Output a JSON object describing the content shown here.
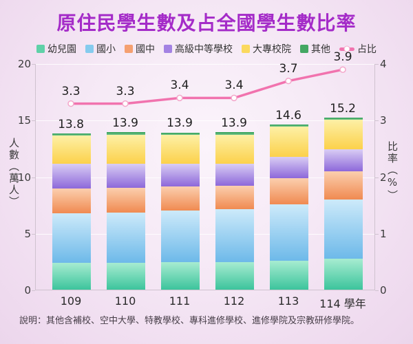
{
  "title": "原住民學生數及占全國學生數比率",
  "footnote": "說明：其他含補校、空中大學、特教學校、專科進修學校、進修學院及宗教研修學院。",
  "colors": {
    "title": "#a42bc8",
    "line": "#f173ae",
    "marker_fill": "#ffffff",
    "marker_stroke": "#f4a6ca",
    "axis_line": "#cfc2cf",
    "gridline": "rgba(255,255,255,0.85)"
  },
  "chart_data": {
    "type": "bar",
    "subtype": "stacked-columns-with-line-overlay",
    "title": "原住民學生數及占全國學生數比率",
    "categories": [
      "109",
      "110",
      "111",
      "112",
      "113",
      "114"
    ],
    "x_axis_suffix": "學年",
    "series": [
      {
        "name": "幼兒園",
        "values": [
          2.4,
          2.4,
          2.45,
          2.45,
          2.55,
          2.75
        ],
        "color_top": "#a7ecd1",
        "color_bottom": "#3cc49c",
        "legend_color": "#5fd1a8"
      },
      {
        "name": "國小",
        "values": [
          4.35,
          4.4,
          4.55,
          4.65,
          5.0,
          5.2
        ],
        "color_top": "#cdeafa",
        "color_bottom": "#6db9e9",
        "legend_color": "#85cbee"
      },
      {
        "name": "國中",
        "values": [
          2.2,
          2.2,
          2.1,
          2.1,
          2.3,
          2.5
        ],
        "color_top": "#fbcfae",
        "color_bottom": "#f08a51",
        "legend_color": "#f5a071"
      },
      {
        "name": "高級中等學校",
        "values": [
          2.15,
          2.1,
          2.05,
          1.95,
          1.9,
          1.95
        ],
        "color_top": "#d9cdf4",
        "color_bottom": "#8d68da",
        "legend_color": "#a382e3"
      },
      {
        "name": "大專校院",
        "values": [
          2.5,
          2.6,
          2.55,
          2.55,
          2.65,
          2.6
        ],
        "color_top": "#fdf0a6",
        "color_bottom": "#fcd14b",
        "legend_color": "#fbd95e"
      },
      {
        "name": "其他",
        "values": [
          0.2,
          0.2,
          0.2,
          0.2,
          0.2,
          0.2
        ],
        "color_top": "#2f9e53",
        "color_bottom": "#74c48e",
        "legend_color": "#44a763"
      }
    ],
    "totals": [
      13.8,
      13.9,
      13.9,
      13.9,
      14.6,
      15.2
    ],
    "line": {
      "name": "占比",
      "values": [
        3.3,
        3.3,
        3.4,
        3.4,
        3.7,
        3.9
      ],
      "axis": "right",
      "color": "#f173ae"
    },
    "left_axis": {
      "title": "人數（萬人）",
      "min": 0,
      "max": 20,
      "ticks": [
        20,
        15,
        10,
        5,
        0
      ]
    },
    "right_axis": {
      "title": "比率（%）",
      "min": 0,
      "max": 4,
      "ticks": [
        4,
        3,
        2,
        1,
        0
      ]
    },
    "grid": true,
    "legend_position": "top"
  }
}
